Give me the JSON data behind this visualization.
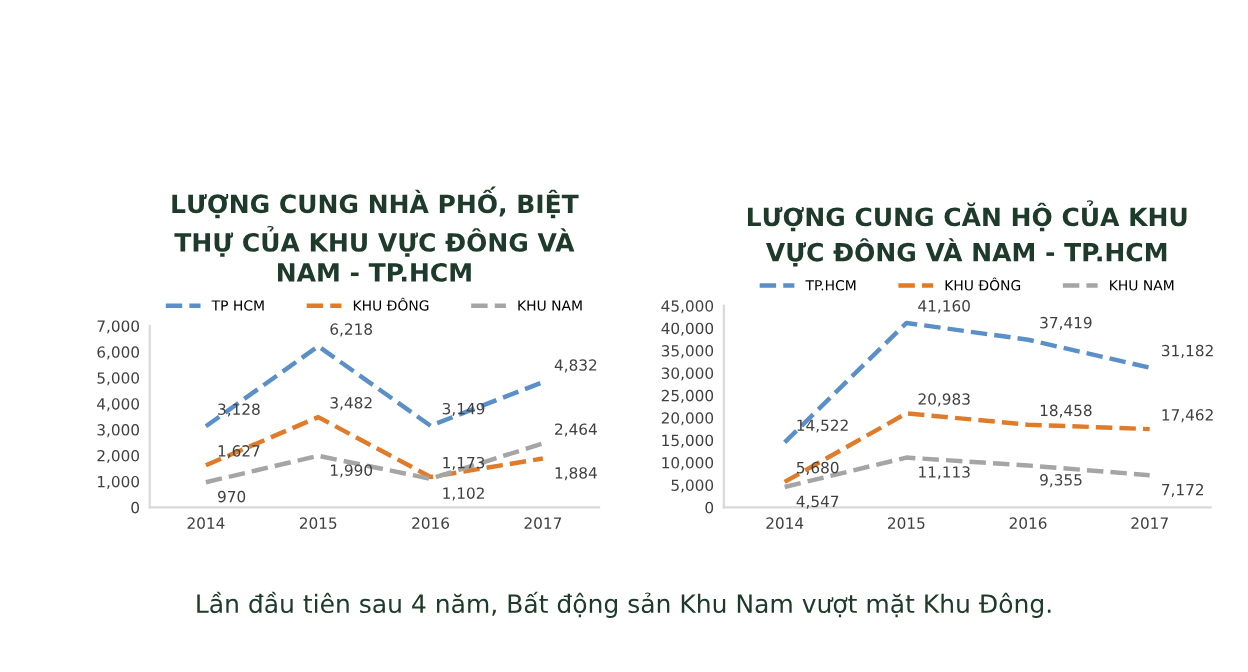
{
  "chart_data": [
    {
      "type": "line",
      "title": "LƯỢNG CUNG NHÀ PHỐ, BIỆT\nTHỰ CỦA KHU VỰC ĐÔNG VÀ\nNAM - TP.HCM",
      "categories": [
        "2014",
        "2015",
        "2016",
        "2017"
      ],
      "series": [
        {
          "name": "TP HCM",
          "color": "#5b8fc7",
          "values": [
            3128,
            6218,
            3149,
            4832
          ],
          "value_labels": [
            "3,128",
            "6,218",
            "3,149",
            "4,832"
          ]
        },
        {
          "name": "KHU ĐÔNG",
          "color": "#e07b2a",
          "values": [
            1627,
            3482,
            1173,
            1884
          ],
          "value_labels": [
            "1,627",
            "3,482",
            "1,173",
            "1,884"
          ]
        },
        {
          "name": "KHU NAM",
          "color": "#a5a5a5",
          "values": [
            970,
            1990,
            1102,
            2464
          ],
          "value_labels": [
            "970",
            "1,990",
            "1,102",
            "2,464"
          ]
        }
      ],
      "ylim": [
        0,
        7000
      ],
      "yticks": [
        0,
        {
          "value": 1000,
          "label": "1,000"
        },
        {
          "value": 2000,
          "label": "2,000"
        },
        {
          "value": 3000,
          "label": "3,000"
        },
        {
          "value": 4000,
          "label": "4,000"
        },
        {
          "value": 5000,
          "label": "5,000"
        },
        {
          "value": 6000,
          "label": "6,000"
        },
        {
          "value": 7000,
          "label": "7,000"
        }
      ],
      "legend": "top",
      "line_style": "dashed"
    },
    {
      "type": "line",
      "title": "LƯỢNG CUNG CĂN HỘ CỦA KHU\nVỰC ĐÔNG VÀ NAM - TP.HCM",
      "categories": [
        "2014",
        "2015",
        "2016",
        "2017"
      ],
      "series": [
        {
          "name": "TP.HCM",
          "color": "#5b8fc7",
          "values": [
            14522,
            41160,
            37419,
            31182
          ],
          "value_labels": [
            "14,522",
            "41,160",
            "37,419",
            "31,182"
          ]
        },
        {
          "name": "KHU ĐÔNG",
          "color": "#e07b2a",
          "values": [
            5680,
            20983,
            18458,
            17462
          ],
          "value_labels": [
            "5,680",
            "20,983",
            "18,458",
            "17,462"
          ]
        },
        {
          "name": "KHU NAM",
          "color": "#a5a5a5",
          "values": [
            4547,
            11113,
            9355,
            7172
          ],
          "value_labels": [
            "4,547",
            "11,113",
            "9,355",
            "7,172"
          ]
        }
      ],
      "ylim": [
        0,
        45000
      ],
      "yticks": [
        0,
        {
          "value": 5000,
          "label": "5,000"
        },
        {
          "value": 10000,
          "label": "10,000"
        },
        {
          "value": 15000,
          "label": "15,000"
        },
        {
          "value": 20000,
          "label": "20,000"
        },
        {
          "value": 25000,
          "label": "25,000"
        },
        {
          "value": 30000,
          "label": "30,000"
        },
        {
          "value": 35000,
          "label": "35,000"
        },
        {
          "value": 40000,
          "label": "40,000"
        },
        {
          "value": 45000,
          "label": "45,000"
        }
      ],
      "legend": "top",
      "line_style": "dashed",
      "annotations": [
        "Lần đầu tiên sau 4 năm, Bất động sản Khu Nam vượt mặt Khu Đông."
      ]
    }
  ]
}
